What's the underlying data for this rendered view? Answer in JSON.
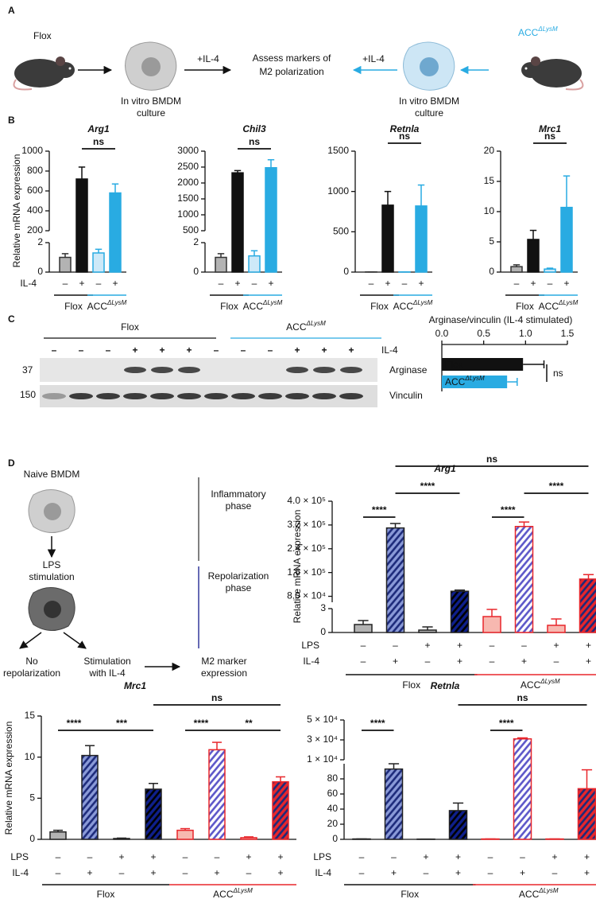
{
  "panel_labels": [
    "A",
    "B",
    "C",
    "D"
  ],
  "a": {
    "flox": "Flox",
    "acc": "ACC",
    "acc_sup": "ΔLysM",
    "plus_il4_left": "+IL-4",
    "plus_il4_right": "+IL-4",
    "assess": [
      "Assess markers of",
      "M2 polarization"
    ],
    "culture_left": [
      "In vitro BMDM",
      "culture"
    ],
    "culture_right": [
      "In vitro BMDM",
      "culture"
    ]
  },
  "b": {
    "row_label": "IL-4",
    "signs": [
      "–",
      "+",
      "–",
      "+"
    ],
    "groups": [
      {
        "name": "Flox",
        "color": "#111111"
      },
      {
        "name": "ACC",
        "sup": "ΔLysM",
        "color": "#29abe2"
      }
    ],
    "charts": [
      {
        "title": "Arg1",
        "y_label": "Relative mRNA expression",
        "segments": [
          {
            "ylim": [
              0,
              2
            ],
            "yticks": [
              0,
              2
            ]
          },
          {
            "ylim": [
              200,
              1000
            ],
            "yticks": [
              200,
              400,
              600,
              800,
              1000
            ]
          }
        ],
        "values": [
          1.0,
          720,
          1.3,
          580
        ],
        "errors": [
          0.25,
          120,
          0.25,
          90
        ],
        "fills": [
          "#b3b3b3",
          "#111111",
          "#cde9f8",
          "#29abe2"
        ],
        "strokes": [
          "#333333",
          "#111111",
          "#29abe2",
          "#29abe2"
        ],
        "annotations": [
          "ns"
        ]
      },
      {
        "title": "Chil3",
        "segments": [
          {
            "ylim": [
              0,
              2
            ],
            "yticks": [
              0,
              2
            ]
          },
          {
            "ylim": [
              500,
              3000
            ],
            "yticks": [
              500,
              1000,
              1500,
              2000,
              2500,
              3000
            ]
          }
        ],
        "values": [
          1.0,
          2320,
          1.1,
          2480
        ],
        "errors": [
          0.25,
          70,
          0.35,
          250
        ],
        "fills": [
          "#b3b3b3",
          "#111111",
          "#cde9f8",
          "#29abe2"
        ],
        "strokes": [
          "#333333",
          "#111111",
          "#29abe2",
          "#29abe2"
        ],
        "annotations": [
          "ns"
        ]
      },
      {
        "title": "Retnla",
        "segments": [
          {
            "ylim": [
              0,
              1500
            ],
            "yticks": [
              0,
              500,
              1000,
              1500
            ]
          }
        ],
        "values": [
          2,
          830,
          2,
          820
        ],
        "errors": [
          0,
          170,
          0,
          260
        ],
        "fills": [
          "#b3b3b3",
          "#111111",
          "#cde9f8",
          "#29abe2"
        ],
        "strokes": [
          "#333333",
          "#111111",
          "#29abe2",
          "#29abe2"
        ],
        "annotations": [
          "ns"
        ]
      },
      {
        "title": "Mrc1",
        "segments": [
          {
            "ylim": [
              0,
              20
            ],
            "yticks": [
              0,
              5,
              10,
              15,
              20
            ]
          }
        ],
        "values": [
          0.9,
          5.4,
          0.5,
          10.7
        ],
        "errors": [
          0.3,
          1.5,
          0.15,
          5.2
        ],
        "fills": [
          "#b3b3b3",
          "#111111",
          "#cde9f8",
          "#29abe2"
        ],
        "strokes": [
          "#333333",
          "#111111",
          "#29abe2",
          "#29abe2"
        ],
        "annotations": [
          "ns"
        ]
      }
    ]
  },
  "c": {
    "groups": [
      {
        "name": "Flox",
        "color": "#111111"
      },
      {
        "name": "ACC",
        "sup": "ΔLysM",
        "color": "#29abe2"
      }
    ],
    "lanes": [
      "–",
      "–",
      "–",
      "+",
      "+",
      "+",
      "–",
      "–",
      "–",
      "+",
      "+",
      "+"
    ],
    "lane_label": "IL-4",
    "bands": [
      "Arginase",
      "Vinculin"
    ],
    "markers": [
      "37",
      "150"
    ],
    "chart": {
      "type": "bar",
      "title": "Arginase/vinculin (IL-4 stimulated)",
      "categories": [
        {
          "name": "Flox"
        },
        {
          "name": "ACC",
          "sup": "ΔLysM"
        }
      ],
      "values": [
        0.97,
        0.78
      ],
      "errors": [
        0.25,
        0.12
      ],
      "colors": [
        "#111111",
        "#29abe2"
      ],
      "xlim": [
        0,
        1.5
      ],
      "xticks": [
        {
          "value": 0,
          "label": "0.0"
        },
        0.5,
        {
          "value": 1,
          "label": "1.0"
        },
        1.5
      ],
      "annotation": "ns"
    }
  },
  "d": {
    "diagram": {
      "naive": "Naive BMDM",
      "lps": [
        "LPS",
        "stimulation"
      ],
      "inflammatory": [
        "Inflammatory",
        "phase"
      ],
      "repolarization": [
        "Repolarization",
        "phase"
      ],
      "no_repol": [
        "No",
        "repolarization"
      ],
      "stim_il4": [
        "Stimulation",
        "with IL-4"
      ],
      "m2": [
        "M2 marker",
        "expression"
      ]
    },
    "row_labels": [
      "LPS",
      "IL-4"
    ],
    "rows": [
      [
        "–",
        "–",
        "+",
        "+",
        "–",
        "–",
        "+",
        "+"
      ],
      [
        "–",
        "+",
        "–",
        "+",
        "–",
        "+",
        "–",
        "+"
      ]
    ],
    "groups": [
      {
        "name": "Flox",
        "color": "#111111"
      },
      {
        "name": "ACC",
        "sup": "ΔLysM",
        "color": "#e8262b"
      }
    ],
    "charts": [
      {
        "title": "Arg1",
        "y_label": "Relative mRNA expression",
        "segments": [
          {
            "ylim": [
              0,
              3
            ],
            "yticks": [
              0,
              3
            ]
          },
          {
            "ylim": [
              60000,
              400000
            ],
            "yticks": [
              {
                "value": 80000,
                "label": "8.0 × 10⁴"
              },
              {
                "value": 160000,
                "label": "1.6 × 10⁵"
              },
              {
                "value": 240000,
                "label": "2.4 × 10⁵"
              },
              {
                "value": 320000,
                "label": "3.2 × 10⁵"
              },
              {
                "value": 400000,
                "label": "4.0 × 10⁵"
              }
            ]
          }
        ],
        "values": [
          1.0,
          310000,
          0.3,
          97000,
          2.0,
          315000,
          0.9,
          138000
        ],
        "errors": [
          0.5,
          15000,
          0.4,
          4000,
          0.9,
          15000,
          0.8,
          15000
        ],
        "fills": [
          "#b3b3b3",
          "#8a9ad8",
          "#b3b3b3",
          "#0e1f8c",
          "#f7b8b0",
          "#ffffff",
          "#f7b8b0",
          "#e8262b"
        ],
        "stripes": [
          null,
          "#1c2a7a",
          null,
          "#000000",
          null,
          "#5a55c8",
          null,
          "#1c2a7a"
        ],
        "strokes": [
          "#222222",
          "#222222",
          "#222222",
          "#222222",
          "#e8262b",
          "#e8262b",
          "#e8262b",
          "#e8262b"
        ],
        "annotations": [
          "****",
          "****",
          "ns",
          "****",
          "****"
        ]
      },
      {
        "title": "Mrc1",
        "y_label": "Relative mRNA expression",
        "segments": [
          {
            "ylim": [
              0,
              15
            ],
            "yticks": [
              0,
              5,
              10,
              15
            ]
          }
        ],
        "values": [
          0.9,
          10.2,
          0.1,
          6.1,
          1.1,
          10.9,
          0.2,
          7.0
        ],
        "errors": [
          0.2,
          1.2,
          0.05,
          0.7,
          0.2,
          0.9,
          0.1,
          0.6
        ],
        "fills": [
          "#b3b3b3",
          "#8a9ad8",
          "#b3b3b3",
          "#0e1f8c",
          "#f7b8b0",
          "#ffffff",
          "#f7b8b0",
          "#e8262b"
        ],
        "stripes": [
          null,
          "#1c2a7a",
          null,
          "#000000",
          null,
          "#5a55c8",
          null,
          "#1c2a7a"
        ],
        "strokes": [
          "#222222",
          "#222222",
          "#222222",
          "#222222",
          "#e8262b",
          "#e8262b",
          "#e8262b",
          "#e8262b"
        ],
        "annotations": [
          "****",
          "***",
          "ns",
          "****",
          "**"
        ]
      },
      {
        "title": "Retnla",
        "segments": [
          {
            "ylim": [
              0,
              100
            ],
            "yticks": [
              0,
              20,
              40,
              60,
              80
            ]
          },
          {
            "ylim": [
              10000,
              50000
            ],
            "yticks": [
              {
                "value": 10000,
                "label": "1 × 10⁴"
              },
              {
                "value": 30000,
                "label": "3 × 10⁴"
              },
              {
                "value": 50000,
                "label": "5 × 10⁴"
              }
            ]
          }
        ],
        "values": [
          0.5,
          93,
          0.3,
          38,
          0.5,
          31000,
          0.5,
          67
        ],
        "errors": [
          0,
          14,
          0,
          10,
          0,
          1000,
          0,
          25
        ],
        "fills": [
          "#b3b3b3",
          "#8a9ad8",
          "#b3b3b3",
          "#0e1f8c",
          "#f7b8b0",
          "#ffffff",
          "#f7b8b0",
          "#e8262b"
        ],
        "stripes": [
          null,
          "#1c2a7a",
          null,
          "#000000",
          null,
          "#5a55c8",
          null,
          "#1c2a7a"
        ],
        "strokes": [
          "#222222",
          "#222222",
          "#222222",
          "#222222",
          "#e8262b",
          "#e8262b",
          "#e8262b",
          "#e8262b"
        ],
        "annotations": [
          "****",
          "ns",
          "****"
        ]
      }
    ]
  }
}
